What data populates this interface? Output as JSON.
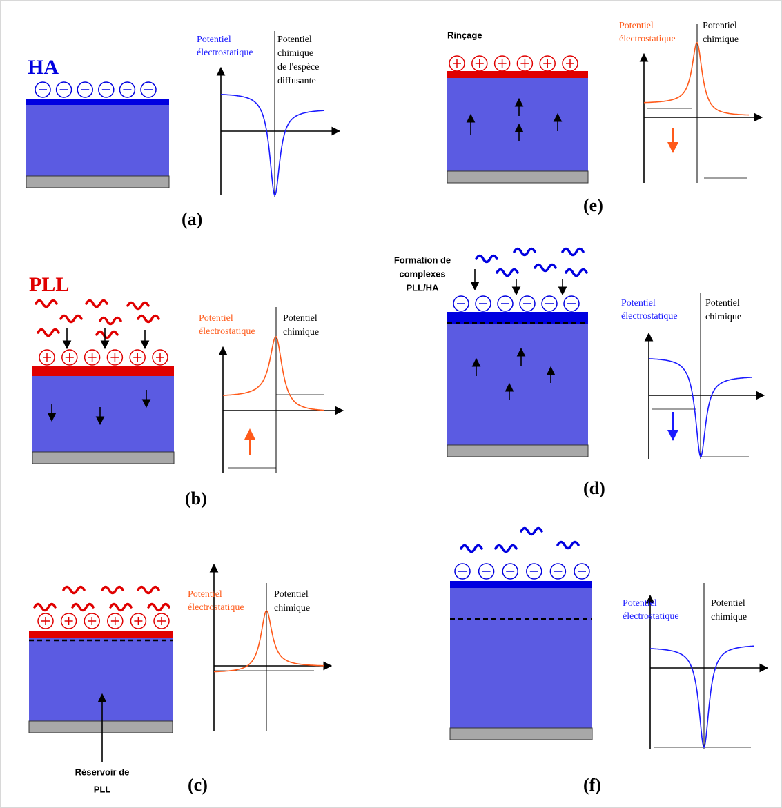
{
  "panels": [
    {
      "letter": "(a)",
      "heading": "HA",
      "electrostatic": [
        "Potentiel",
        "électrostatique"
      ],
      "chemical": [
        "Potentiel",
        "chimique",
        "de l'espèce",
        "diffusante"
      ]
    },
    {
      "letter": "(b)",
      "heading": "PLL",
      "electrostatic": [
        "Potentiel",
        "électrostatique"
      ],
      "chemical": [
        "Potentiel",
        "chimique"
      ]
    },
    {
      "letter": "(c)",
      "electrostatic": [
        "Potentiel",
        "électrostatique"
      ],
      "chemical": [
        "Potentiel",
        "chimique"
      ],
      "annotation": [
        "Réservoir de",
        "PLL"
      ]
    },
    {
      "letter": "(d)",
      "electrostatic": [
        "Potentiel",
        "électrostatique"
      ],
      "chemical": [
        "Potentiel",
        "chimique"
      ],
      "annotation": [
        "Formation de",
        "complexes",
        "PLL/HA"
      ]
    },
    {
      "letter": "(e)",
      "heading": "Rinçage",
      "electrostatic": [
        "Potentiel",
        "électrostatique"
      ],
      "chemical": [
        "Potentiel",
        "chimique"
      ]
    },
    {
      "letter": "(f)",
      "electrostatic": [
        "Potentiel",
        "électrostatique"
      ],
      "chemical": [
        "Potentiel",
        "chimique"
      ]
    }
  ]
}
